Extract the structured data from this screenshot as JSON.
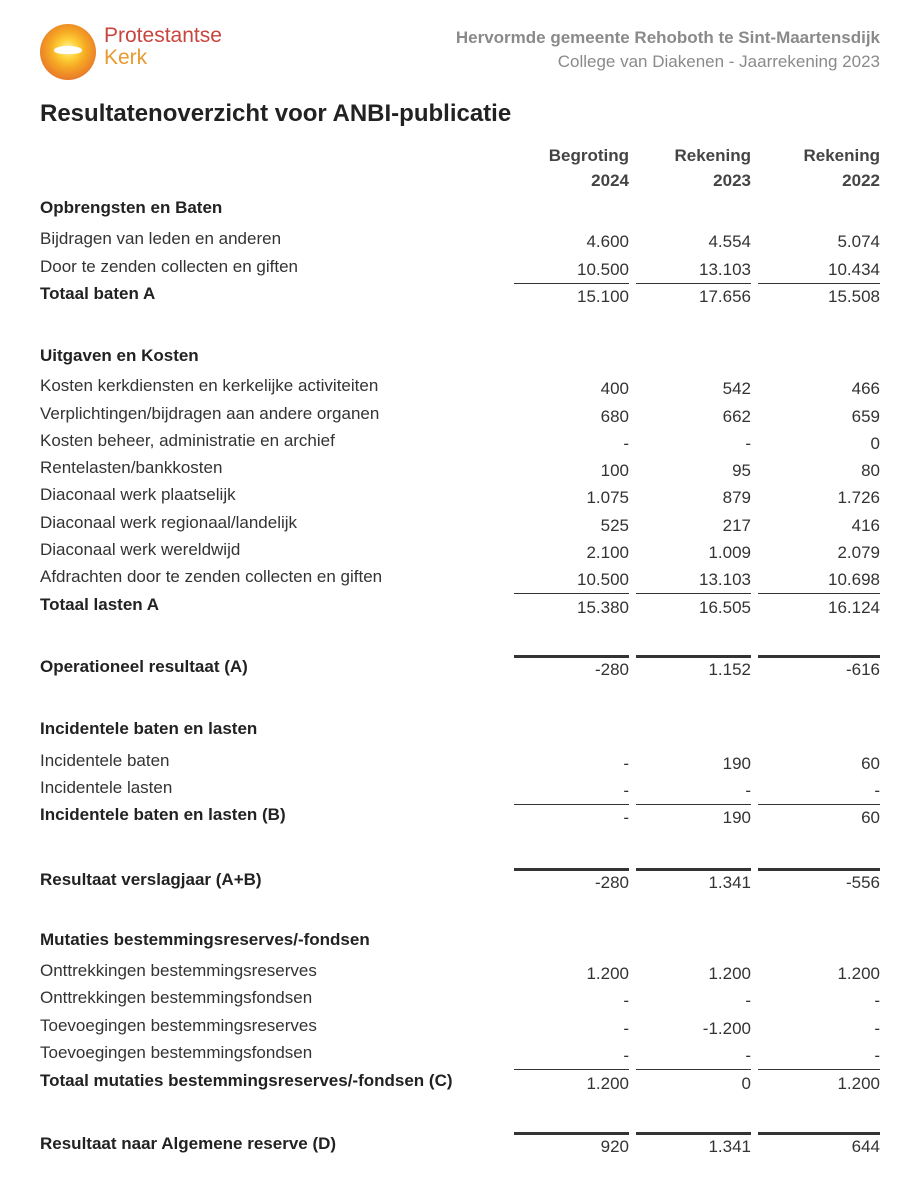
{
  "logo": {
    "line1": "Protestantse",
    "line2": "Kerk"
  },
  "header": {
    "organisation": "Hervormde gemeente Rehoboth te Sint-Maartensdijk",
    "subtitle": "College van Diakenen - Jaarrekening 2023"
  },
  "title": "Resultatenoverzicht voor ANBI-publicatie",
  "columns": [
    {
      "line1": "Begroting",
      "line2": "2024"
    },
    {
      "line1": "Rekening",
      "line2": "2023"
    },
    {
      "line1": "Rekening",
      "line2": "2022"
    }
  ],
  "rows": [
    {
      "kind": "section",
      "label": "Opbrengsten en Baten"
    },
    {
      "kind": "item",
      "label": "Bijdragen van leden en anderen",
      "values": [
        "4.600",
        "4.554",
        "5.074"
      ]
    },
    {
      "kind": "item-last",
      "label": "Door te zenden collecten en giften",
      "values": [
        "10.500",
        "13.103",
        "10.434"
      ]
    },
    {
      "kind": "total",
      "label": "Totaal baten A",
      "values": [
        "15.100",
        "17.656",
        "15.508"
      ]
    },
    {
      "kind": "section",
      "label": "Uitgaven en Kosten"
    },
    {
      "kind": "item",
      "label": "Kosten kerkdiensten en kerkelijke activiteiten",
      "values": [
        "400",
        "542",
        "466"
      ]
    },
    {
      "kind": "item",
      "label": "Verplichtingen/bijdragen aan andere organen",
      "values": [
        "680",
        "662",
        "659"
      ]
    },
    {
      "kind": "item",
      "label": "Kosten beheer, administratie en archief",
      "values": [
        "-",
        "-",
        "0"
      ]
    },
    {
      "kind": "item",
      "label": "Rentelasten/bankkosten",
      "values": [
        "100",
        "95",
        "80"
      ]
    },
    {
      "kind": "item",
      "label": "Diaconaal werk plaatselijk",
      "values": [
        "1.075",
        "879",
        "1.726"
      ]
    },
    {
      "kind": "item",
      "label": "Diaconaal werk regionaal/landelijk",
      "values": [
        "525",
        "217",
        "416"
      ]
    },
    {
      "kind": "item",
      "label": "Diaconaal werk wereldwijd",
      "values": [
        "2.100",
        "1.009",
        "2.079"
      ]
    },
    {
      "kind": "item-last",
      "label": "Afdrachten door te zenden collecten en giften",
      "values": [
        "10.500",
        "13.103",
        "10.698"
      ]
    },
    {
      "kind": "total",
      "label": "Totaal lasten A",
      "values": [
        "15.380",
        "16.505",
        "16.124"
      ]
    },
    {
      "kind": "result",
      "label": "Operationeel resultaat (A)",
      "values": [
        "-280",
        "1.152",
        "-616"
      ]
    },
    {
      "kind": "section",
      "label": "Incidentele baten en lasten"
    },
    {
      "kind": "item",
      "label": "Incidentele baten",
      "values": [
        "-",
        "190",
        "60"
      ]
    },
    {
      "kind": "item-last",
      "label": "Incidentele lasten",
      "values": [
        "-",
        "-",
        "-"
      ]
    },
    {
      "kind": "total",
      "label": "Incidentele baten en lasten (B)",
      "values": [
        "-",
        "190",
        "60"
      ]
    },
    {
      "kind": "result",
      "label": "Resultaat verslagjaar (A+B)",
      "values": [
        "-280",
        "1.341",
        "-556"
      ]
    },
    {
      "kind": "section",
      "label": "Mutaties bestemmingsreserves/-fondsen"
    },
    {
      "kind": "item",
      "label": "Onttrekkingen bestemmingsreserves",
      "values": [
        "1.200",
        "1.200",
        "1.200"
      ]
    },
    {
      "kind": "item",
      "label": "Onttrekkingen bestemmingsfondsen",
      "values": [
        "-",
        "-",
        "-"
      ]
    },
    {
      "kind": "item",
      "label": "Toevoegingen bestemmingsreserves",
      "values": [
        "-",
        "-1.200",
        "-"
      ]
    },
    {
      "kind": "item-last",
      "label": "Toevoegingen bestemmingsfondsen",
      "values": [
        "-",
        "-",
        "-"
      ]
    },
    {
      "kind": "total",
      "label": "Totaal mutaties bestemmingsreserves/-fondsen (C)",
      "values": [
        "1.200",
        "0",
        "1.200"
      ]
    },
    {
      "kind": "result",
      "label": "Resultaat naar Algemene reserve (D)",
      "values": [
        "920",
        "1.341",
        "644"
      ]
    }
  ]
}
